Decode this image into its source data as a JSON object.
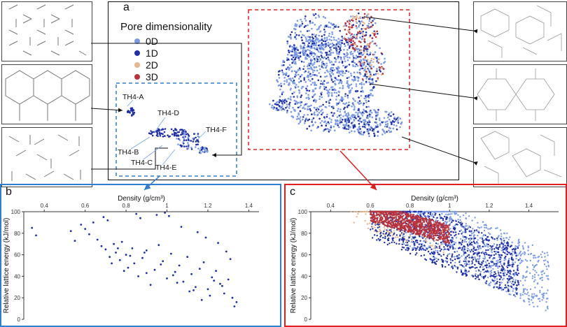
{
  "panel_a": {
    "label": "a",
    "legend_title": "Pore dimensionality",
    "legend": [
      {
        "name": "0D",
        "color": "#7a9be8"
      },
      {
        "name": "1D",
        "color": "#1f2fa8"
      },
      {
        "name": "2D",
        "color": "#e8b68a"
      },
      {
        "name": "3D",
        "color": "#b8323c"
      }
    ],
    "cluster_labels": [
      "TH4-A",
      "TH4-B",
      "TH4-C",
      "TH4-D",
      "TH4-E",
      "TH4-F"
    ]
  },
  "panel_b_label": "b",
  "panel_c_label": "c",
  "chart_data": [
    {
      "type": "scatter",
      "title": "",
      "xlabel": "Density (g/cm³)",
      "ylabel": "Relative lattice energy (kJ/mol)",
      "x_ticks": [
        "0.4",
        "0.6",
        "0.8",
        "1",
        "1.2",
        "1.4"
      ],
      "y_ticks": [
        "0",
        "20",
        "40",
        "60",
        "80",
        "100"
      ],
      "xlim": [
        0.3,
        1.45
      ],
      "ylim": [
        0,
        100
      ],
      "x_axis_position": "top",
      "series": [
        {
          "color": "#1f2fa8",
          "x": [
            0.34,
            0.36,
            0.53,
            0.55,
            0.58,
            0.6,
            0.62,
            0.64,
            0.66,
            0.68,
            0.7,
            0.72,
            0.74,
            0.75,
            0.77,
            0.78,
            0.8,
            0.81,
            0.83,
            0.84,
            0.86,
            0.88,
            0.9,
            0.92,
            0.94,
            0.96,
            0.98,
            1.0,
            1.02,
            1.04,
            1.06,
            1.08,
            1.1,
            1.12,
            1.14,
            1.16,
            1.18,
            1.2,
            1.22,
            1.24,
            1.26,
            1.28,
            1.3,
            1.32,
            1.34,
            0.69,
            0.71,
            0.85,
            0.87,
            0.95,
            0.99,
            1.01,
            1.07,
            1.15,
            1.19,
            1.25,
            1.29,
            1.31,
            0.76,
            0.82,
            0.9,
            0.97,
            1.05,
            1.13,
            1.21,
            1.27,
            1.33,
            0.73,
            0.79,
            0.89,
            1.03,
            1.11,
            1.17,
            1.23
          ],
          "y": [
            85,
            78,
            82,
            73,
            88,
            84,
            79,
            90,
            74,
            68,
            65,
            58,
            70,
            62,
            55,
            72,
            60,
            48,
            66,
            52,
            40,
            57,
            64,
            32,
            46,
            69,
            54,
            38,
            61,
            44,
            50,
            35,
            58,
            42,
            30,
            47,
            53,
            28,
            39,
            45,
            33,
            24,
            37,
            20,
            16,
            95,
            92,
            98,
            94,
            97,
            99,
            96,
            86,
            81,
            76,
            71,
            63,
            56,
            66,
            59,
            43,
            51,
            34,
            27,
            22,
            31,
            12,
            52,
            45,
            62,
            41,
            26,
            18,
            36
          ]
        }
      ]
    },
    {
      "type": "scatter",
      "title": "",
      "xlabel": "Density (g/cm³)",
      "ylabel": "Relative lattice energy (kJ/mol)",
      "x_ticks": [
        "0.4",
        "0.6",
        "0.8",
        "1",
        "1.2",
        "1.4"
      ],
      "y_ticks": [
        "0",
        "20",
        "40",
        "60",
        "80",
        "100"
      ],
      "xlim": [
        0.3,
        1.55
      ],
      "ylim": [
        0,
        100
      ],
      "x_axis_position": "top",
      "series": [
        {
          "name": "0D",
          "color": "#7a9be8",
          "density": "dense",
          "x_range": [
            0.75,
            1.5
          ],
          "y_range": [
            5,
            100
          ],
          "trend": "descending"
        },
        {
          "name": "1D",
          "color": "#1f2fa8",
          "density": "dense",
          "x_range": [
            0.6,
            1.35
          ],
          "y_range": [
            20,
            100
          ],
          "trend": "descending"
        },
        {
          "name": "2D",
          "color": "#e8b68a",
          "density": "sparse",
          "x_range": [
            0.5,
            1.0
          ],
          "y_range": [
            60,
            100
          ],
          "trend": "descending"
        },
        {
          "name": "3D",
          "color": "#b8323c",
          "density": "dense",
          "x_range": [
            0.6,
            1.0
          ],
          "y_range": [
            70,
            100
          ],
          "trend": "descending"
        }
      ]
    }
  ]
}
